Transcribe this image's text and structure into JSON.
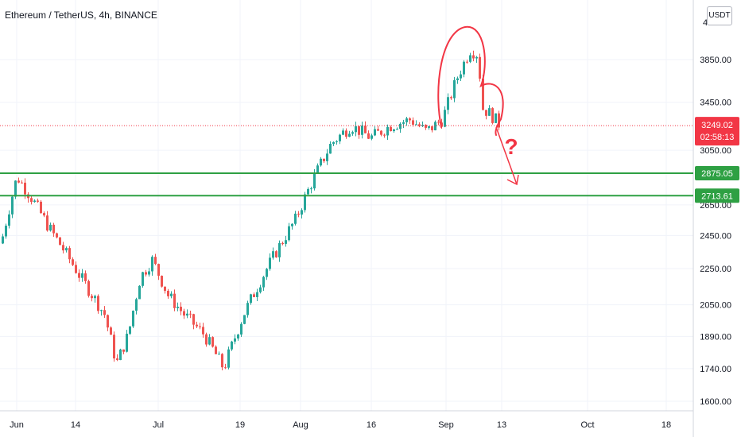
{
  "header": {
    "title": "Ethereum / TetherUS, 4h, BINANCE",
    "unit_button": "USDT",
    "top_clip_label": "4"
  },
  "colors": {
    "up": "#26a69a",
    "down": "#ef5350",
    "support": "#2ea043",
    "annotation": "#f23645",
    "last_price_line": "#f23645"
  },
  "chart_data": {
    "type": "candlestick",
    "price_axis_ticks": [
      3850,
      3450,
      3050,
      2650,
      2450,
      2250,
      2050,
      1890,
      1740,
      1600
    ],
    "price_tick_labels": [
      "3850.00",
      "3450.00",
      "3050.00",
      "2650.00",
      "2450.00",
      "2250.00",
      "2050.00",
      "1890.00",
      "1740.00",
      "1600.00"
    ],
    "time_axis_labels": [
      "Jun",
      "14",
      "Jul",
      "19",
      "Aug",
      "16",
      "Sep",
      "13",
      "Oct",
      "18"
    ],
    "scale": "log",
    "ylim": [
      1560,
      4400
    ],
    "last_price": {
      "value": "3249.02",
      "countdown": "02:58:13"
    },
    "support_levels": [
      {
        "label": "2875.05",
        "value": 2875.05
      },
      {
        "label": "2713.61",
        "value": 2713.61
      }
    ],
    "annotation_text": "?",
    "approx_path": [
      [
        "Jun",
        2400
      ],
      [
        "Jun",
        2850
      ],
      [
        "Jun",
        2700
      ],
      [
        "14",
        2500
      ],
      [
        "14",
        2350
      ],
      [
        "14",
        2200
      ],
      [
        "14",
        2000
      ],
      [
        "14",
        1760
      ],
      [
        "Jul",
        1900
      ],
      [
        "Jul",
        2200
      ],
      [
        "Jul",
        2300
      ],
      [
        "Jul",
        2100
      ],
      [
        "Jul",
        2000
      ],
      [
        "19",
        1900
      ],
      [
        "19",
        1740
      ],
      [
        "19",
        2000
      ],
      [
        "Aug",
        2300
      ],
      [
        "Aug",
        2550
      ],
      [
        "Aug",
        2800
      ],
      [
        "Aug",
        3100
      ],
      [
        "16",
        3250
      ],
      [
        "16",
        3150
      ],
      [
        "16",
        3250
      ],
      [
        "16",
        3300
      ],
      [
        "16",
        3200
      ],
      [
        "Sep",
        3300
      ],
      [
        "Sep",
        3700
      ],
      [
        "Sep",
        3950
      ],
      [
        "Sep",
        3900
      ],
      [
        "Sep",
        3400
      ],
      [
        "13",
        3350
      ],
      [
        "13",
        3249
      ]
    ]
  }
}
